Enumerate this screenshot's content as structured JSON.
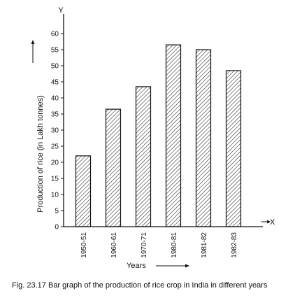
{
  "chart_data": {
    "type": "bar",
    "categories": [
      "1950-51",
      "1960-61",
      "1970-71",
      "1980-81",
      "1981-82",
      "1982-83"
    ],
    "values": [
      22,
      36.5,
      43.5,
      56.5,
      55,
      48.5
    ],
    "ylabel": "Production of rice (in Lakh tonnes)",
    "xlabel": "Years",
    "y_axis_letter": "Y",
    "x_axis_letter": "X",
    "ylim": [
      0,
      60
    ],
    "yticks": [
      0,
      5,
      10,
      15,
      20,
      25,
      30,
      35,
      40,
      45,
      50,
      55,
      60
    ],
    "grid": false,
    "fill_pattern": "diagonal-hatch",
    "caption": "Fig. 23.17  Bar graph of the production of rice crop in India in different years"
  }
}
